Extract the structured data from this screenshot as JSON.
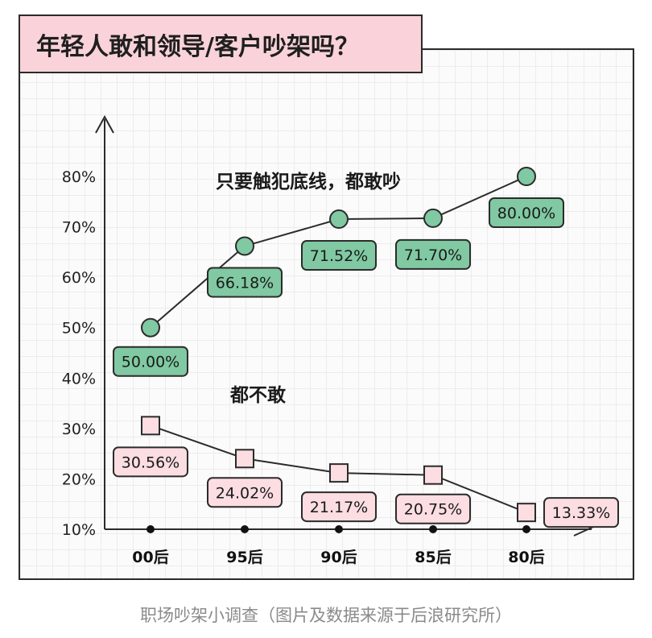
{
  "title": "年轻人敢和领导/客户吵架吗？",
  "caption": "职场吵架小调查（图片及数据来源于后浪研究所）",
  "colors": {
    "green_fill": "#80c9a2",
    "pink_fill": "#fbdde2",
    "title_bg": "#f9d3d9",
    "line": "#2b2b2b"
  },
  "chart_data": {
    "type": "line",
    "categories": [
      "00后",
      "95后",
      "90后",
      "85后",
      "80后"
    ],
    "ylim": [
      10,
      80
    ],
    "yticks": [
      "10%",
      "20%",
      "30%",
      "40%",
      "50%",
      "60%",
      "70%",
      "80%"
    ],
    "grid": true,
    "series": [
      {
        "name": "只要触犯底线，都敢吵",
        "marker": "circle",
        "values": [
          50.0,
          66.18,
          71.52,
          71.7,
          80.0
        ],
        "labels": [
          "50.00%",
          "66.18%",
          "71.52%",
          "71.70%",
          "80.00%"
        ]
      },
      {
        "name": "都不敢",
        "marker": "square",
        "values": [
          30.56,
          24.02,
          21.17,
          20.75,
          13.33
        ],
        "labels": [
          "30.56%",
          "24.02%",
          "21.17%",
          "20.75%",
          "13.33%"
        ]
      }
    ]
  }
}
